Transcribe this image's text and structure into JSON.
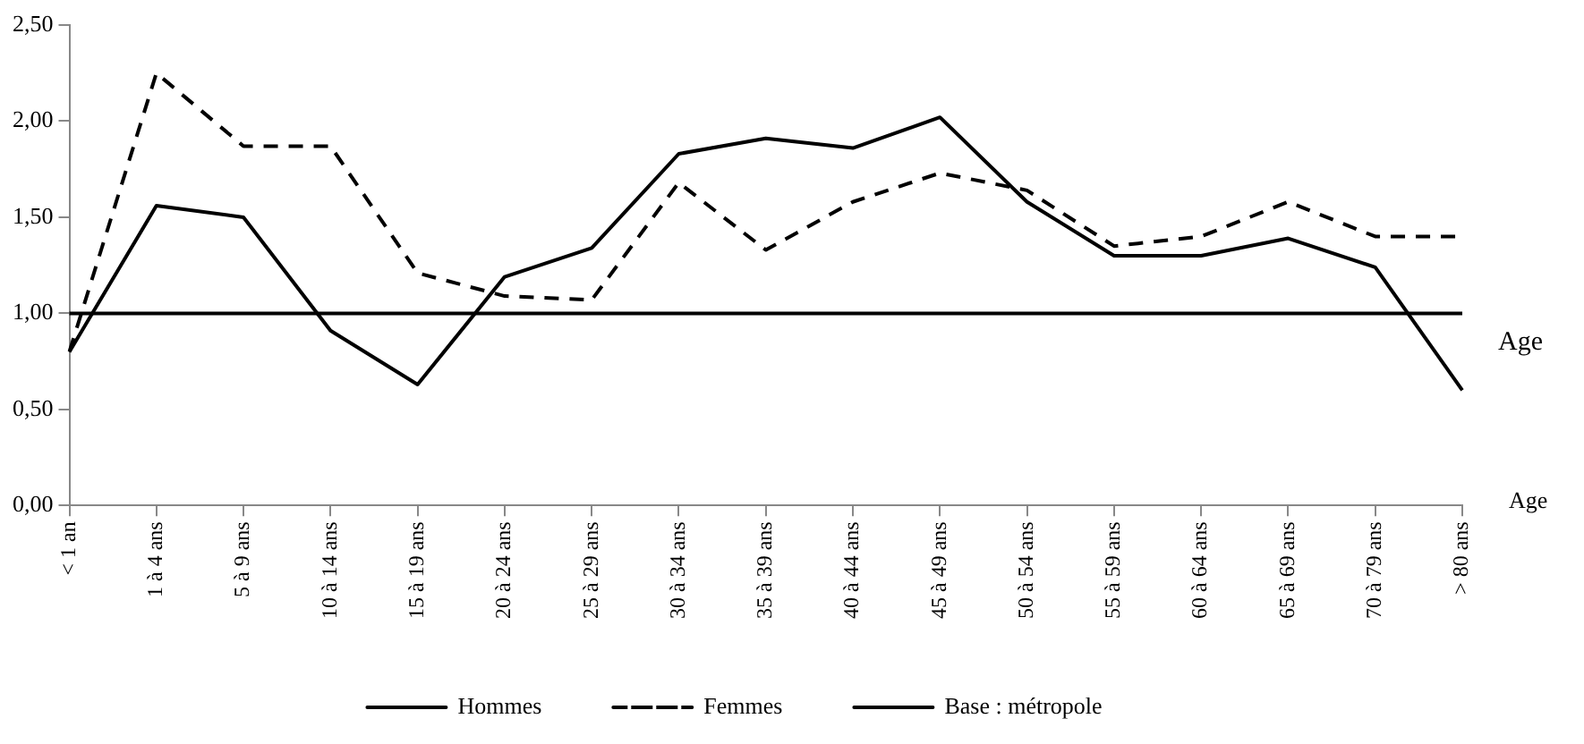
{
  "chart_data": {
    "type": "line",
    "xlabel": "Age",
    "categories": [
      "< 1 an",
      "1 à 4 ans",
      "5 à 9 ans",
      "10 à 14 ans",
      "15 à 19 ans",
      "20 à 24 ans",
      "25 à 29 ans",
      "30 à 34 ans",
      "35 à 39 ans",
      "40 à 44 ans",
      "45 à 49 ans",
      "50 à 54 ans",
      "55 à 59 ans",
      "60 à 64 ans",
      "65 à 69 ans",
      "70 à 79 ans",
      "> 80 ans"
    ],
    "series": [
      {
        "name": "Hommes",
        "color": "#000000",
        "line_style": "solid",
        "values": [
          0.8,
          1.56,
          1.5,
          0.91,
          0.63,
          1.19,
          1.34,
          1.83,
          1.91,
          1.86,
          2.02,
          1.58,
          1.3,
          1.3,
          1.39,
          1.24,
          0.6
        ]
      },
      {
        "name": "Femmes",
        "color": "#000000",
        "line_style": "dashed",
        "values": [
          0.8,
          2.25,
          1.87,
          1.87,
          1.21,
          1.09,
          1.07,
          1.68,
          1.33,
          1.58,
          1.73,
          1.64,
          1.35,
          1.4,
          1.58,
          1.4,
          1.4
        ]
      },
      {
        "name": "Base : métropole",
        "color": "#000000",
        "line_style": "solid",
        "values": [
          1.0,
          1.0,
          1.0,
          1.0,
          1.0,
          1.0,
          1.0,
          1.0,
          1.0,
          1.0,
          1.0,
          1.0,
          1.0,
          1.0,
          1.0,
          1.0,
          1.0
        ]
      }
    ],
    "ylim": [
      0,
      2.5
    ],
    "yticks": [
      {
        "value": 0,
        "label": "0,00"
      },
      {
        "value": 0.5,
        "label": "0,50"
      },
      {
        "value": 1,
        "label": "1,00"
      },
      {
        "value": 1.5,
        "label": "1,50"
      },
      {
        "value": 2,
        "label": "2,00"
      },
      {
        "value": 2.5,
        "label": "2,50"
      }
    ],
    "annotations": [
      "Age"
    ],
    "grid": false,
    "legend": "bottom",
    "marker": "none"
  }
}
